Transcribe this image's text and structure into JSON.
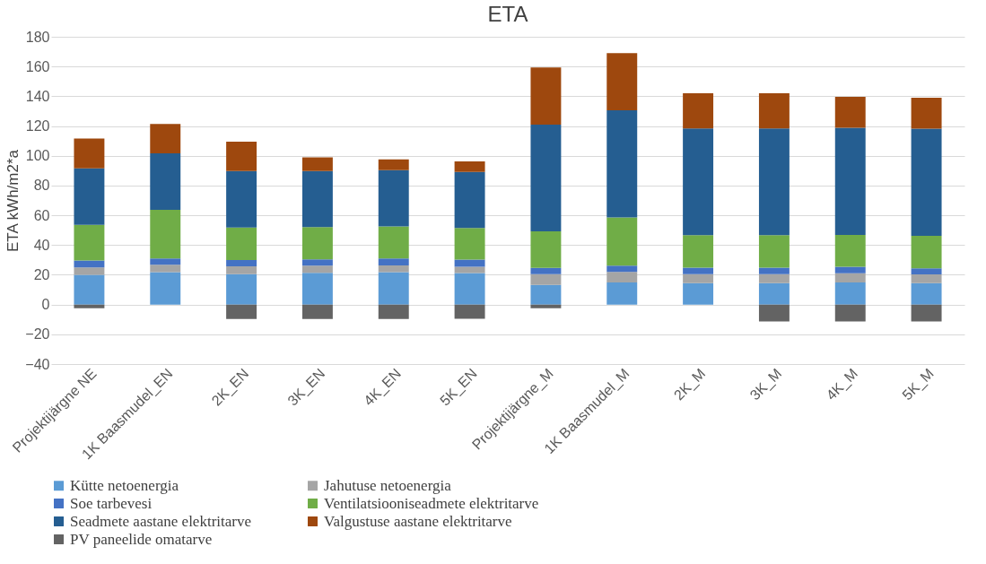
{
  "chart_data": {
    "type": "bar",
    "title": "ETA",
    "ylabel": "ETA kWh/m2*a",
    "stacked": true,
    "categories": [
      "Projektijärgne NE",
      "1K Baasmudel_EN",
      "2K_EN",
      "3K_EN",
      "4K_EN",
      "5K_EN",
      "Projektijärgne_M",
      "1K Baasmudel_M",
      "2K_M",
      "3K_M",
      "4K_M",
      "5K_M"
    ],
    "series": [
      {
        "name": "Kütte netoenergia",
        "color": "#5b9bd5",
        "values": [
          20,
          21.8,
          20.4,
          21.4,
          21.8,
          21.2,
          13.2,
          14.8,
          14.4,
          14.4,
          14.8,
          14.4
        ]
      },
      {
        "name": "Jahutuse netoenergia",
        "color": "#a5a5a5",
        "values": [
          5,
          4.9,
          5.3,
          4.7,
          4.5,
          4.2,
          7.2,
          7.2,
          6,
          6,
          6.2,
          5.8
        ]
      },
      {
        "name": "Soe tarbevesi",
        "color": "#4472c4",
        "values": [
          4.6,
          4.2,
          4.2,
          4.2,
          4.6,
          4.8,
          4.2,
          4.2,
          4.4,
          4.4,
          4.4,
          4.2
        ]
      },
      {
        "name": "Ventilatsiooniseadmete elektritarve",
        "color": "#70ad47",
        "values": [
          24,
          32.7,
          21.8,
          21.8,
          21.6,
          21.2,
          24.6,
          32.4,
          21.8,
          21.8,
          21.4,
          21.8
        ]
      },
      {
        "name": "Seadmete aastane elektritarve",
        "color": "#255e91",
        "values": [
          38,
          38,
          38,
          37.6,
          37.8,
          37.8,
          71.8,
          72,
          71.8,
          71.8,
          72,
          72
        ]
      },
      {
        "name": "Valgustuse aastane elektritarve",
        "color": "#9e480e",
        "values": [
          20,
          19.8,
          19.8,
          9.3,
          7.3,
          7,
          38.4,
          38.4,
          23.6,
          23.6,
          20.8,
          20.8
        ]
      },
      {
        "name": "PV paneelide omatarve",
        "color": "#636363",
        "values": [
          -2.5,
          null,
          -9.7,
          -9.7,
          -9.7,
          -9.6,
          -2.5,
          null,
          null,
          -11.4,
          -11.4,
          -11.4
        ]
      }
    ],
    "ylim": [
      -40,
      180
    ],
    "yticks": [
      -40,
      -20,
      0,
      20,
      40,
      60,
      80,
      100,
      120,
      140,
      160,
      180
    ],
    "grid": "y",
    "legend": "bottom"
  }
}
